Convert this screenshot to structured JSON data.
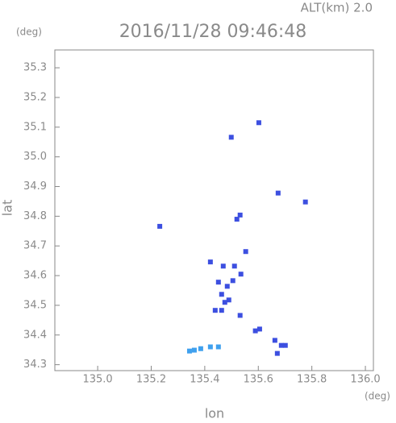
{
  "chart_data": {
    "type": "scatter",
    "title": "2016/11/28 09:46:48",
    "subtitle": "ALT(km) 2.0",
    "y_unit": "(deg)",
    "x_unit": "(deg)",
    "x_label": "lon",
    "y_label": "lat",
    "xlim": [
      134.84,
      136.03
    ],
    "ylim": [
      34.28,
      35.36
    ],
    "xticks": [
      {
        "value": 135.0,
        "label": "135.0"
      },
      135.2,
      135.4,
      135.6,
      135.8,
      {
        "value": 136.0,
        "label": "136.0"
      }
    ],
    "yticks": [
      35.3,
      35.2,
      35.1,
      {
        "value": 35.0,
        "label": "35.0"
      },
      34.9,
      34.8,
      34.7,
      34.6,
      34.5,
      34.4,
      34.3
    ],
    "series": [
      {
        "color": "#3c4fe0",
        "x": [
          135.499,
          135.602,
          135.232,
          135.674,
          135.776,
          135.52,
          135.532,
          135.421,
          135.553,
          135.511,
          135.469,
          135.451,
          135.484,
          135.463,
          135.475,
          135.463,
          135.439,
          135.49,
          135.505,
          135.535,
          135.532,
          135.589,
          135.605,
          135.662,
          135.686,
          135.671,
          135.701
        ],
        "values": [
          35.066,
          35.115,
          34.766,
          34.878,
          34.848,
          34.79,
          34.804,
          34.646,
          34.681,
          34.632,
          34.632,
          34.578,
          34.564,
          34.537,
          34.51,
          34.483,
          34.483,
          34.518,
          34.583,
          34.605,
          34.466,
          34.414,
          34.42,
          34.382,
          34.365,
          34.338,
          34.365
        ]
      },
      {
        "color": "#3fa0ee",
        "x": [
          135.343,
          135.361,
          135.385,
          135.421,
          135.451
        ],
        "values": [
          34.346,
          34.349,
          34.354,
          34.36,
          34.36
        ]
      }
    ]
  }
}
